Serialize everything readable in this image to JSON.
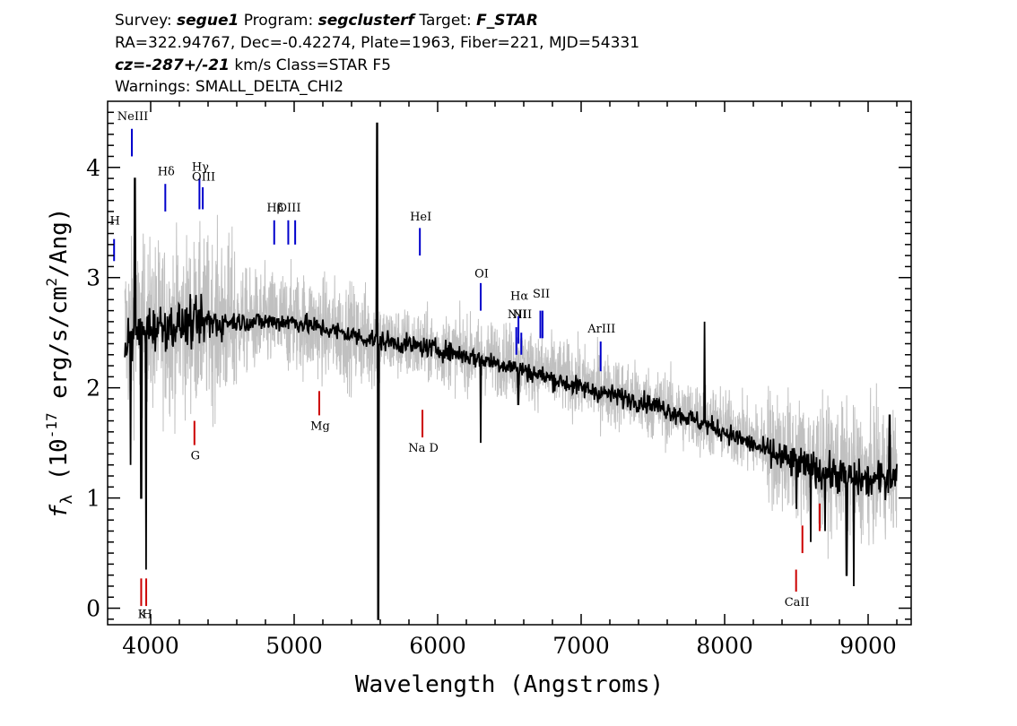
{
  "header": {
    "line1": {
      "survey_label": "Survey: ",
      "survey": "segue1",
      "program_label": " Program: ",
      "program": "segclusterf",
      "target_label": " Target: ",
      "target": "F_STAR"
    },
    "line2": "RA=322.94767, Dec=-0.42274, Plate=1963, Fiber=221, MJD=54331",
    "line3": {
      "cz": "cz=-287+/-21",
      "rest": " km/s  Class=STAR F5"
    },
    "line4": "Warnings: SMALL_DELTA_CHI2"
  },
  "chart_data": {
    "type": "line",
    "xlabel": "Wavelength (Angstroms)",
    "ylabel": "f_λ (10^-17 erg/s/cm^2/Ang)",
    "ylabel_parts": {
      "symbol": "f",
      "sub": "λ",
      "pre": " (10",
      "exp": "-17",
      "mid": " erg/s/cm",
      "exp2": "2",
      "post": "/Ang)"
    },
    "xlim": [
      3700,
      9300
    ],
    "ylim": [
      -0.15,
      4.6
    ],
    "xticks": [
      4000,
      5000,
      6000,
      7000,
      8000,
      9000
    ],
    "xtick_labels": [
      "4000",
      "5000",
      "6000",
      "7000",
      "8000",
      "9000"
    ],
    "yticks": [
      0,
      1,
      2,
      3,
      4
    ],
    "ytick_labels": [
      "0",
      "1",
      "2",
      "3",
      "4"
    ],
    "grid": false,
    "series": [
      {
        "role": "error-envelope",
        "color": "#c0c0c0",
        "continuum": [
          [
            3820,
            2.5
          ],
          [
            4000,
            2.55
          ],
          [
            4500,
            2.6
          ],
          [
            5000,
            2.6
          ],
          [
            5500,
            2.45
          ],
          [
            6000,
            2.35
          ],
          [
            6500,
            2.25
          ],
          [
            7000,
            2.05
          ],
          [
            7500,
            1.85
          ],
          [
            8000,
            1.65
          ],
          [
            8500,
            1.35
          ],
          [
            9000,
            1.2
          ],
          [
            9200,
            1.25
          ]
        ]
      },
      {
        "role": "flux",
        "color": "#000000",
        "continuum": [
          [
            3820,
            2.4
          ],
          [
            4000,
            2.55
          ],
          [
            4500,
            2.6
          ],
          [
            5000,
            2.6
          ],
          [
            5500,
            2.45
          ],
          [
            6000,
            2.35
          ],
          [
            6500,
            2.2
          ],
          [
            7000,
            2.0
          ],
          [
            7500,
            1.85
          ],
          [
            8000,
            1.6
          ],
          [
            8500,
            1.3
          ],
          [
            9000,
            1.15
          ],
          [
            9200,
            1.2
          ]
        ],
        "features": [
          {
            "x": 3860,
            "y": 1.3
          },
          {
            "x": 3890,
            "y": 3.9
          },
          {
            "x": 3933,
            "y": 1.0
          },
          {
            "x": 3968,
            "y": 0.35
          },
          {
            "x": 5577,
            "y": 4.4
          },
          {
            "x": 5585,
            "y": -0.1
          },
          {
            "x": 6300,
            "y": 1.5
          },
          {
            "x": 6563,
            "y": 1.85
          },
          {
            "x": 7860,
            "y": 2.6
          },
          {
            "x": 8500,
            "y": 0.9
          },
          {
            "x": 8600,
            "y": 0.6
          },
          {
            "x": 8700,
            "y": 0.7
          },
          {
            "x": 8850,
            "y": 0.3
          },
          {
            "x": 8900,
            "y": 0.2
          },
          {
            "x": 9150,
            "y": 1.75
          }
        ]
      }
    ],
    "emission_lines": [
      {
        "label": "H",
        "x": 3745,
        "y_low": 3.15,
        "y_high": 3.35,
        "label_y": 3.48,
        "color": "#0000cc"
      },
      {
        "label": "NeIII",
        "x": 3869,
        "y_low": 4.1,
        "y_high": 4.35,
        "label_y": 4.43,
        "color": "#0000cc"
      },
      {
        "label": "Hδ",
        "x": 4102,
        "y_low": 3.6,
        "y_high": 3.85,
        "label_y": 3.93,
        "color": "#0000cc"
      },
      {
        "label": "Hγ",
        "x": 4340,
        "y_low": 3.62,
        "y_high": 3.9,
        "label_y": 3.97,
        "color": "#0000cc"
      },
      {
        "label": "OIII",
        "x": 4363,
        "y_low": 3.62,
        "y_high": 3.82,
        "label_y": 3.88,
        "color": "#0000cc"
      },
      {
        "label": "Hβ",
        "x": 4861,
        "y_low": 3.3,
        "y_high": 3.52,
        "label_y": 3.6,
        "color": "#0000cc"
      },
      {
        "label": "OIII",
        "x": 4959,
        "y_low": 3.3,
        "y_high": 3.52,
        "label_y": 3.6,
        "color": "#0000cc"
      },
      {
        "label": "",
        "x": 5007,
        "y_low": 3.3,
        "y_high": 3.52,
        "label_y": 3.6,
        "color": "#0000cc"
      },
      {
        "label": "HeI",
        "x": 5876,
        "y_low": 3.2,
        "y_high": 3.45,
        "label_y": 3.52,
        "color": "#0000cc"
      },
      {
        "label": "OI",
        "x": 6300,
        "y_low": 2.7,
        "y_high": 2.95,
        "label_y": 3.0,
        "color": "#0000cc"
      },
      {
        "label": "NII",
        "x": 6548,
        "y_low": 2.3,
        "y_high": 2.55,
        "label_y": 2.63,
        "color": "#0000cc"
      },
      {
        "label": "Hα",
        "x": 6563,
        "y_low": 2.4,
        "y_high": 2.65,
        "label_y": 2.8,
        "color": "#0000cc"
      },
      {
        "label": "NII",
        "x": 6583,
        "y_low": 2.3,
        "y_high": 2.5,
        "label_y": 2.63,
        "color": "#0000cc"
      },
      {
        "label": "SII",
        "x": 6716,
        "y_low": 2.45,
        "y_high": 2.7,
        "label_y": 2.82,
        "color": "#0000cc"
      },
      {
        "label": "",
        "x": 6731,
        "y_low": 2.45,
        "y_high": 2.7,
        "label_y": 2.82,
        "color": "#0000cc"
      },
      {
        "label": "ArIII",
        "x": 7136,
        "y_low": 2.15,
        "y_high": 2.42,
        "label_y": 2.5,
        "color": "#0000cc"
      }
    ],
    "absorption_lines": [
      {
        "label": "K",
        "x": 3934,
        "y_low": 0.02,
        "y_high": 0.27,
        "label_y": -0.09,
        "color": "#cc0000"
      },
      {
        "label": "H",
        "x": 3969,
        "y_low": 0.02,
        "y_high": 0.27,
        "label_y": -0.09,
        "color": "#cc0000"
      },
      {
        "label": "G",
        "x": 4305,
        "y_low": 1.48,
        "y_high": 1.7,
        "label_y": 1.35,
        "color": "#cc0000"
      },
      {
        "label": "Mg",
        "x": 5175,
        "y_low": 1.75,
        "y_high": 1.97,
        "label_y": 1.62,
        "color": "#cc0000"
      },
      {
        "label": "Na D",
        "x": 5894,
        "y_low": 1.55,
        "y_high": 1.8,
        "label_y": 1.42,
        "color": "#cc0000"
      },
      {
        "label": "CaII",
        "x": 8498,
        "y_low": 0.15,
        "y_high": 0.35,
        "label_y": 0.02,
        "color": "#cc0000"
      },
      {
        "label": "",
        "x": 8542,
        "y_low": 0.5,
        "y_high": 0.75,
        "label_y": 0.02,
        "color": "#cc0000"
      },
      {
        "label": "",
        "x": 8662,
        "y_low": 0.7,
        "y_high": 0.95,
        "label_y": 0.02,
        "color": "#cc0000"
      }
    ]
  }
}
